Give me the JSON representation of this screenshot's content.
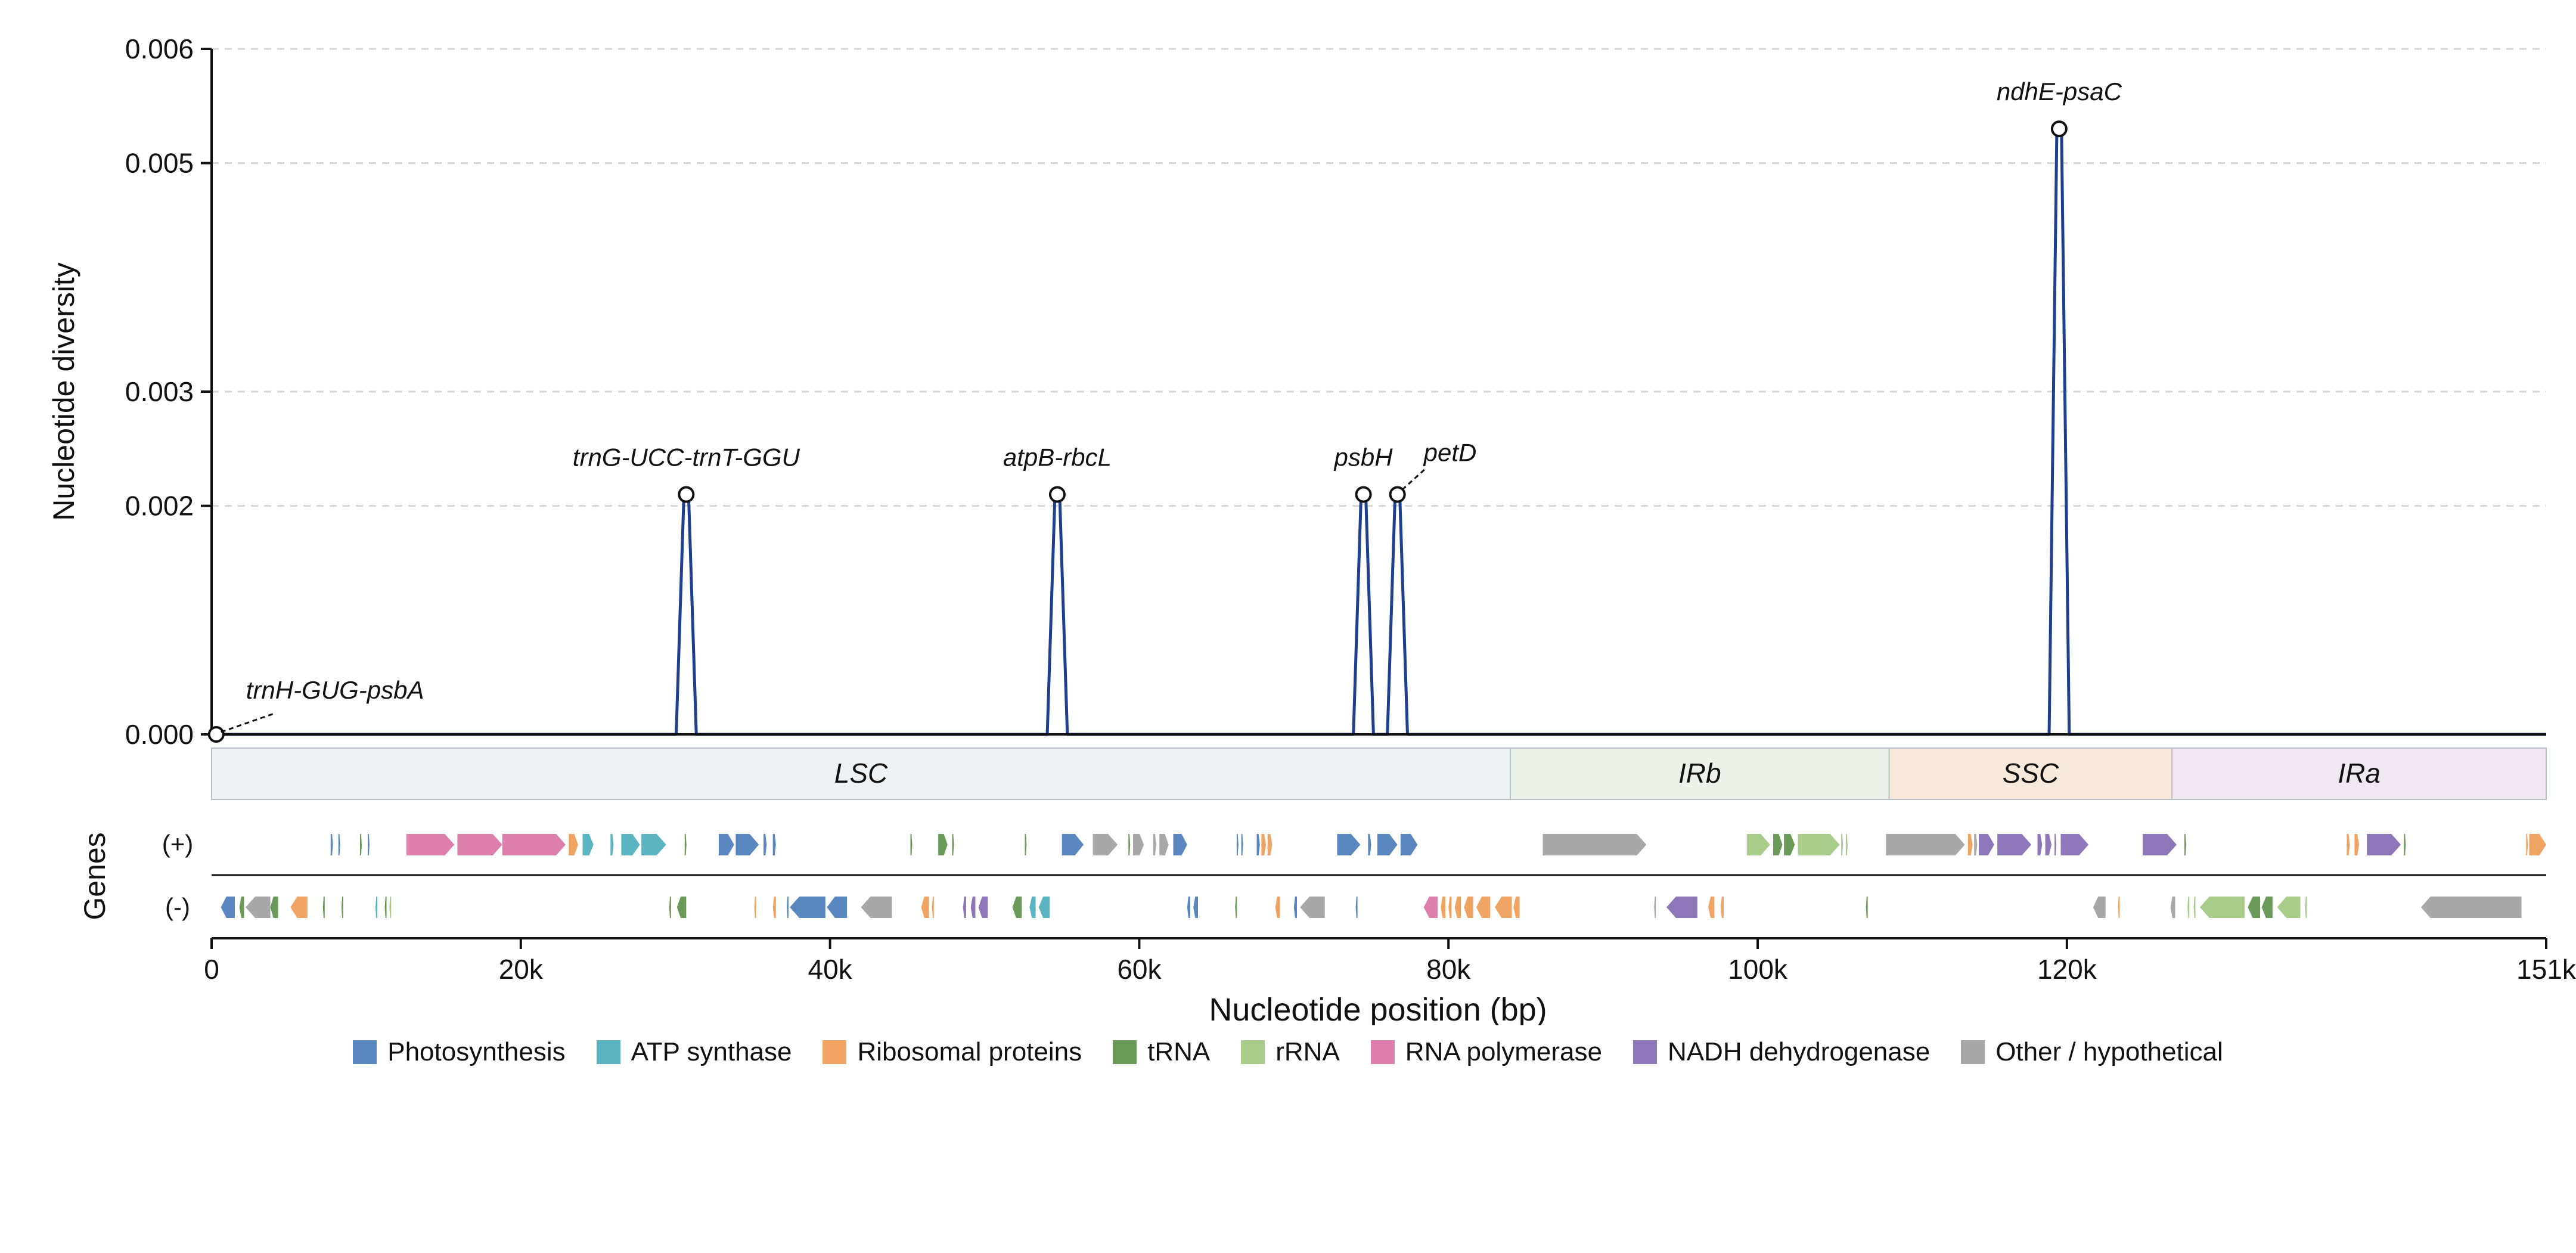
{
  "chart_data": {
    "type": "line",
    "ylabel": "Nucleotide diversity",
    "xlabel": "Nucleotide position (bp)",
    "genes_label": "Genes",
    "strand_labels": [
      "(+)",
      "(-)"
    ],
    "xlim": [
      0,
      151000
    ],
    "ylim": [
      0,
      0.006
    ],
    "yticks": [
      0.0,
      0.002,
      0.003,
      0.005,
      0.006
    ],
    "ytick_labels": [
      "0.000",
      "0.002",
      "0.003",
      "0.005",
      "0.006"
    ],
    "xticks": [
      0,
      20000,
      40000,
      60000,
      80000,
      100000,
      120000,
      151000
    ],
    "xtick_labels": [
      "0",
      "20k",
      "40k",
      "60k",
      "80k",
      "100k",
      "120k",
      "151k"
    ],
    "grid": true,
    "line_color": "#1f3f8f",
    "series": [
      {
        "peaks": [
          {
            "x": 300,
            "y": 0.0,
            "label": "trnH-GUG-psbA"
          },
          {
            "x": 30700,
            "y": 0.0021,
            "label": "trnG-UCC-trnT-GGU"
          },
          {
            "x": 54700,
            "y": 0.0021,
            "label": "atpB-rbcL"
          },
          {
            "x": 74500,
            "y": 0.0021,
            "label": "psbH"
          },
          {
            "x": 76700,
            "y": 0.0021,
            "label": "petD"
          },
          {
            "x": 119500,
            "y": 0.0053,
            "label": "ndhE-psaC"
          }
        ]
      }
    ],
    "regions": [
      {
        "name": "LSC",
        "start": 0,
        "end": 84000,
        "color": "#eef2f5"
      },
      {
        "name": "IRb",
        "start": 84000,
        "end": 108500,
        "color": "#ecf2e9"
      },
      {
        "name": "SSC",
        "start": 108500,
        "end": 126800,
        "color": "#f7e8da"
      },
      {
        "name": "IRa",
        "start": 126800,
        "end": 151000,
        "color": "#f1e7f2"
      }
    ],
    "categories": [
      "Photosynthesis",
      "ATP synthase",
      "Ribosomal proteins",
      "tRNA",
      "rRNA",
      "RNA polymerase",
      "NADH dehydrogenase",
      "Other / hypothetical"
    ],
    "category_colors": [
      "#5b87c0",
      "#5bb4c2",
      "#f0a463",
      "#6a9a58",
      "#a9cc8a",
      "#dc7fad",
      "#8e77b8",
      "#a8a8a8"
    ],
    "genes_plus": [
      [
        7700,
        7850,
        0
      ],
      [
        8200,
        8300,
        0
      ],
      [
        9600,
        9700,
        3
      ],
      [
        10100,
        10200,
        0
      ],
      [
        12600,
        15700,
        5
      ],
      [
        15900,
        18800,
        5
      ],
      [
        18800,
        22900,
        5
      ],
      [
        23100,
        23700,
        2
      ],
      [
        24000,
        24700,
        1
      ],
      [
        25800,
        26000,
        1
      ],
      [
        26500,
        27700,
        1
      ],
      [
        27800,
        29400,
        1
      ],
      [
        30600,
        30700,
        3
      ],
      [
        32800,
        33800,
        0
      ],
      [
        33900,
        35400,
        0
      ],
      [
        35700,
        35900,
        0
      ],
      [
        36300,
        36500,
        0
      ],
      [
        45200,
        45300,
        3
      ],
      [
        47000,
        47600,
        3
      ],
      [
        47900,
        48000,
        3
      ],
      [
        52600,
        52700,
        3
      ],
      [
        55000,
        56400,
        0
      ],
      [
        57000,
        58600,
        7
      ],
      [
        59300,
        59400,
        3
      ],
      [
        59600,
        60300,
        7
      ],
      [
        60900,
        61100,
        7
      ],
      [
        61300,
        61900,
        7
      ],
      [
        62200,
        63100,
        0
      ],
      [
        66300,
        66400,
        0
      ],
      [
        66600,
        66700,
        0
      ],
      [
        67600,
        67800,
        0
      ],
      [
        67900,
        68200,
        2
      ],
      [
        68300,
        68600,
        2
      ],
      [
        72800,
        74300,
        0
      ],
      [
        74800,
        75000,
        0
      ],
      [
        75400,
        76700,
        0
      ],
      [
        76900,
        78000,
        0
      ],
      [
        86100,
        92800,
        7
      ],
      [
        99300,
        100800,
        4
      ],
      [
        101000,
        101600,
        3
      ],
      [
        101700,
        102400,
        3
      ],
      [
        102600,
        105300,
        4
      ],
      [
        105400,
        105500,
        4
      ],
      [
        105700,
        105800,
        4
      ],
      [
        108300,
        113400,
        7
      ],
      [
        113600,
        113900,
        2
      ],
      [
        114000,
        114200,
        7
      ],
      [
        114300,
        115300,
        6
      ],
      [
        115500,
        117700,
        6
      ],
      [
        118100,
        118400,
        6
      ],
      [
        118600,
        119000,
        6
      ],
      [
        119200,
        119300,
        6
      ],
      [
        119600,
        121400,
        6
      ],
      [
        124900,
        127100,
        6
      ],
      [
        127600,
        127700,
        3
      ],
      [
        138100,
        138300,
        2
      ],
      [
        138600,
        138900,
        2
      ],
      [
        139400,
        141600,
        6
      ],
      [
        141800,
        141900,
        3
      ],
      [
        149700,
        149800,
        2
      ],
      [
        149900,
        151000,
        2
      ]
    ],
    "genes_minus": [
      [
        600,
        1500,
        0
      ],
      [
        1800,
        2100,
        3
      ],
      [
        2200,
        3800,
        7
      ],
      [
        3800,
        4300,
        3
      ],
      [
        5100,
        6200,
        2
      ],
      [
        7200,
        7300,
        3
      ],
      [
        8400,
        8500,
        3
      ],
      [
        10600,
        10700,
        1
      ],
      [
        11200,
        11300,
        3
      ],
      [
        11500,
        11600,
        4
      ],
      [
        29600,
        29700,
        3
      ],
      [
        30100,
        30700,
        3
      ],
      [
        35100,
        35200,
        2
      ],
      [
        36300,
        36500,
        2
      ],
      [
        37200,
        37300,
        0
      ],
      [
        37400,
        39700,
        0
      ],
      [
        39800,
        41100,
        0
      ],
      [
        42000,
        44000,
        7
      ],
      [
        45900,
        46400,
        2
      ],
      [
        46600,
        46700,
        2
      ],
      [
        48600,
        48800,
        6
      ],
      [
        49100,
        49400,
        6
      ],
      [
        49600,
        50200,
        6
      ],
      [
        51800,
        52400,
        3
      ],
      [
        52900,
        53300,
        1
      ],
      [
        53500,
        54200,
        1
      ],
      [
        63100,
        63300,
        0
      ],
      [
        63500,
        63800,
        0
      ],
      [
        66200,
        66300,
        3
      ],
      [
        68800,
        69100,
        2
      ],
      [
        70000,
        70200,
        0
      ],
      [
        70400,
        72000,
        7
      ],
      [
        74000,
        74100,
        0
      ],
      [
        78400,
        79300,
        5
      ],
      [
        79500,
        79800,
        2
      ],
      [
        80000,
        80200,
        2
      ],
      [
        80400,
        80800,
        2
      ],
      [
        81000,
        81600,
        2
      ],
      [
        81800,
        82700,
        2
      ],
      [
        83000,
        84100,
        2
      ],
      [
        84200,
        84600,
        2
      ],
      [
        93300,
        93400,
        7
      ],
      [
        94100,
        96100,
        6
      ],
      [
        96800,
        97200,
        2
      ],
      [
        97600,
        97800,
        2
      ],
      [
        107000,
        107100,
        3
      ],
      [
        121700,
        122500,
        7
      ],
      [
        123300,
        123400,
        2
      ],
      [
        126700,
        127000,
        7
      ],
      [
        127800,
        127900,
        4
      ],
      [
        128200,
        128300,
        4
      ],
      [
        128600,
        131500,
        4
      ],
      [
        131700,
        132500,
        3
      ],
      [
        132600,
        133300,
        3
      ],
      [
        133600,
        135100,
        4
      ],
      [
        135400,
        135500,
        4
      ],
      [
        142900,
        149400,
        7
      ]
    ]
  }
}
